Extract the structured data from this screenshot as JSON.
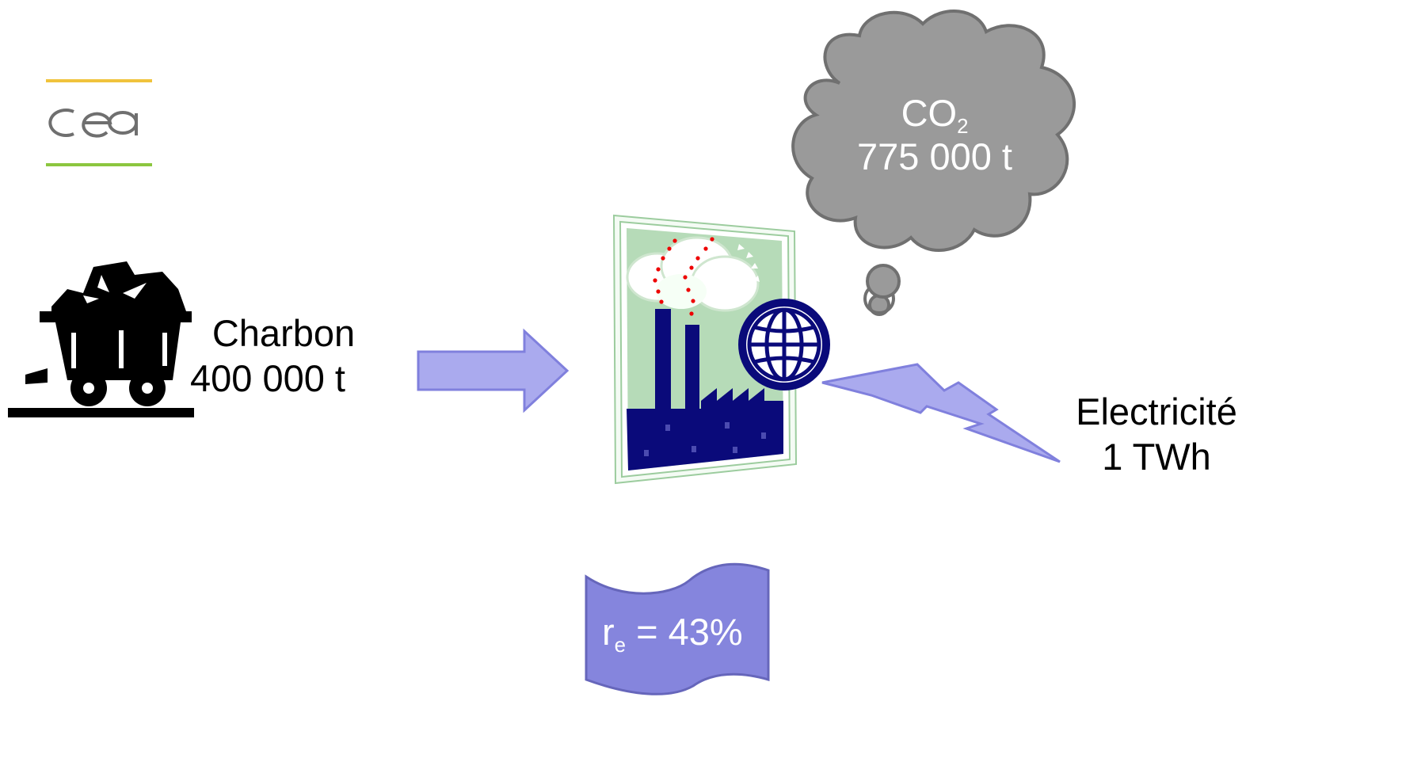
{
  "logo": {
    "text": "cea",
    "colors": {
      "top_bar": "#f0c33c",
      "bottom_bar": "#8cc63f",
      "letters": "#6f6f6f"
    }
  },
  "coal": {
    "name": "Charbon",
    "amount": "400 000 t"
  },
  "co2": {
    "name_main": "CO",
    "name_sub": "2",
    "amount": "775 000 t"
  },
  "electricity": {
    "name": "Electricité",
    "amount": "1 TWh"
  },
  "efficiency": {
    "symbol": "r",
    "symbol_sub": "e",
    "value": " = 43%"
  },
  "icons": [
    "coal-cart-icon",
    "arrow-right-icon",
    "power-plant-icon",
    "globe-icon",
    "co2-cloud-icon",
    "lightning-bolt-icon",
    "banner-flag-icon"
  ],
  "colors": {
    "arrow_fill": "#aaaaee",
    "arrow_stroke": "#8080dd",
    "cloud_fill": "#9a9a9a",
    "cloud_stroke": "#707070",
    "bolt_fill": "#aaaaee",
    "banner_fill": "#8585dd",
    "factory_navy": "#0a0a7a",
    "factory_sky": "#b6dbb8",
    "smoke_dots": "#ee0000"
  }
}
